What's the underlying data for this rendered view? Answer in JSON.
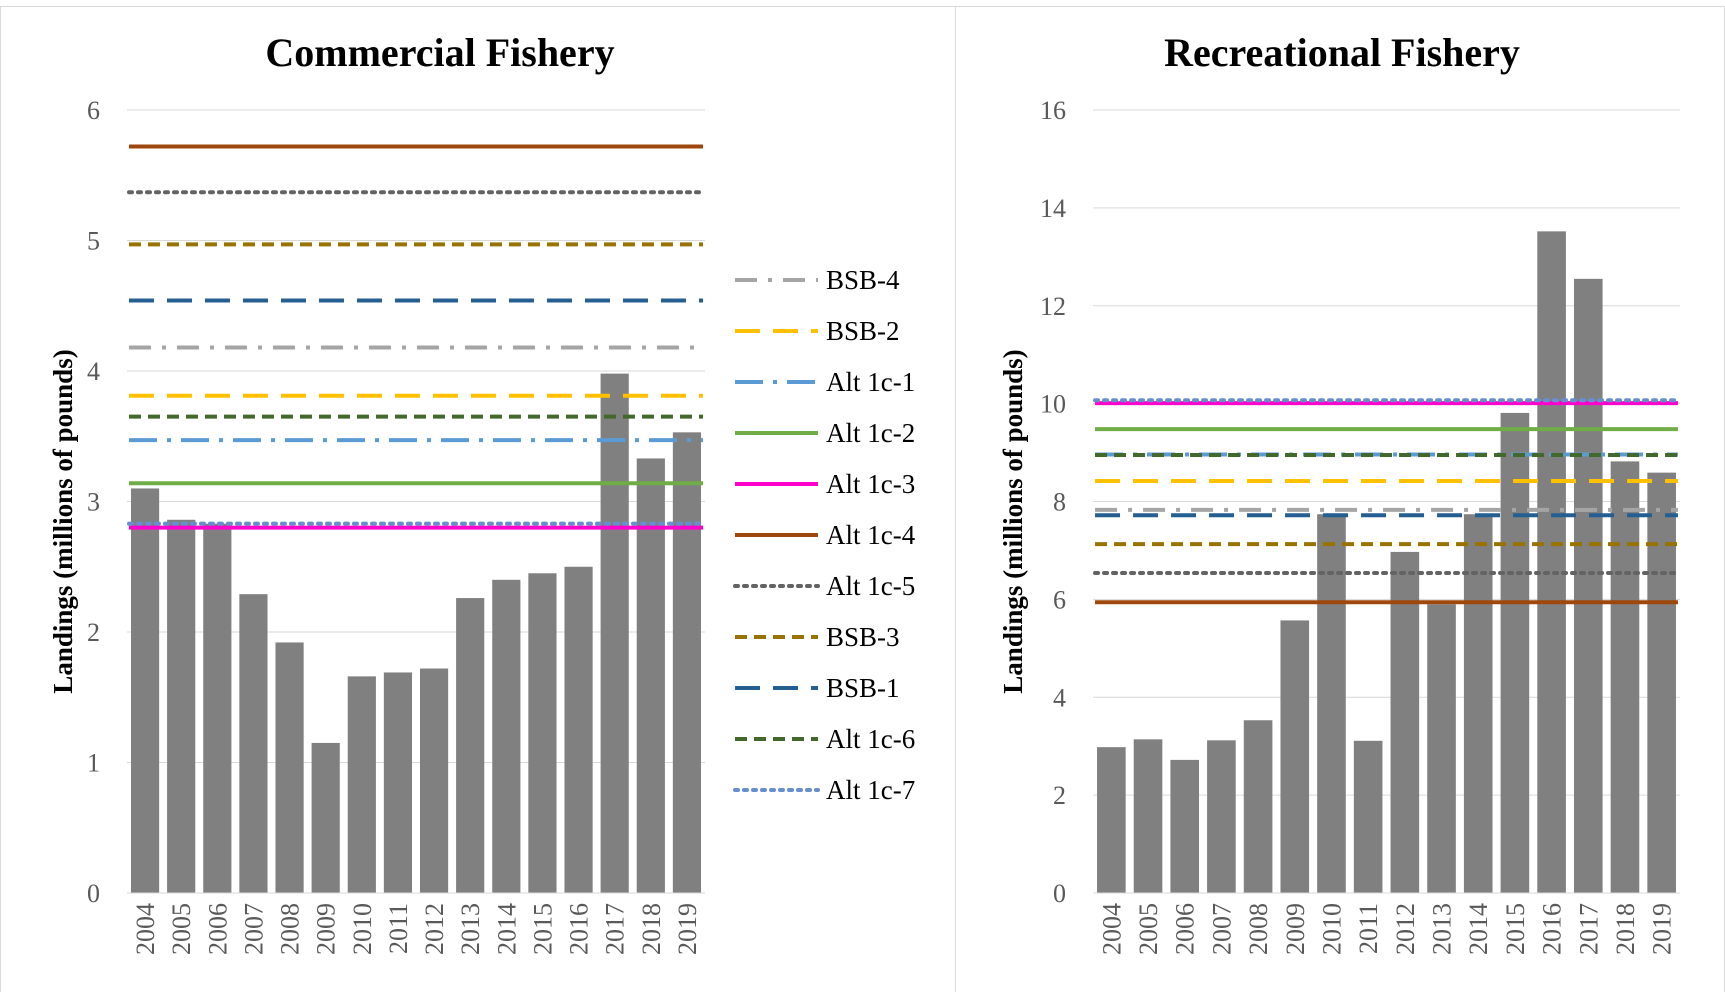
{
  "chart_data": [
    {
      "type": "bar",
      "title": "Commercial Fishery",
      "ylabel": "Landings (millions of pounds)",
      "xlabel": "",
      "ylim": [
        0,
        6
      ],
      "yticks": [
        0,
        1,
        2,
        3,
        4,
        5,
        6
      ],
      "grid": true,
      "categories": [
        "2004",
        "2005",
        "2006",
        "2007",
        "2008",
        "2009",
        "2010",
        "2011",
        "2012",
        "2013",
        "2014",
        "2015",
        "2016",
        "2017",
        "2018",
        "2019"
      ],
      "values": [
        3.1,
        2.86,
        2.83,
        2.29,
        1.92,
        1.15,
        1.66,
        1.69,
        1.72,
        2.26,
        2.4,
        2.45,
        2.5,
        3.98,
        3.33,
        3.53
      ],
      "bar_color": "#808080",
      "reference_lines": [
        {
          "name": "BSB-4",
          "value": 4.18
        },
        {
          "name": "BSB-2",
          "value": 3.81
        },
        {
          "name": "Alt 1c-1",
          "value": 3.47
        },
        {
          "name": "Alt 1c-2",
          "value": 3.14
        },
        {
          "name": "Alt 1c-3",
          "value": 2.8
        },
        {
          "name": "Alt 1c-4",
          "value": 5.72
        },
        {
          "name": "Alt 1c-5",
          "value": 5.37
        },
        {
          "name": "BSB-3",
          "value": 4.97
        },
        {
          "name": "BSB-1",
          "value": 4.54
        },
        {
          "name": "Alt 1c-6",
          "value": 3.65
        },
        {
          "name": "Alt 1c-7",
          "value": 2.83
        }
      ]
    },
    {
      "type": "bar",
      "title": "Recreational Fishery",
      "ylabel": "Landings (millions of pounds)",
      "xlabel": "",
      "ylim": [
        0,
        16
      ],
      "yticks": [
        0,
        2,
        4,
        6,
        8,
        10,
        12,
        14,
        16
      ],
      "grid": true,
      "categories": [
        "2004",
        "2005",
        "2006",
        "2007",
        "2008",
        "2009",
        "2010",
        "2011",
        "2012",
        "2013",
        "2014",
        "2015",
        "2016",
        "2017",
        "2018",
        "2019"
      ],
      "values": [
        2.98,
        3.14,
        2.72,
        3.12,
        3.53,
        5.57,
        7.74,
        3.11,
        6.97,
        5.9,
        7.74,
        9.81,
        13.52,
        12.55,
        8.82,
        8.59
      ],
      "bar_color": "#808080",
      "reference_lines": [
        {
          "name": "BSB-4",
          "value": 7.83
        },
        {
          "name": "BSB-2",
          "value": 8.42
        },
        {
          "name": "Alt 1c-1",
          "value": 8.96
        },
        {
          "name": "Alt 1c-2",
          "value": 9.48
        },
        {
          "name": "Alt 1c-3",
          "value": 10.01
        },
        {
          "name": "Alt 1c-4",
          "value": 5.94
        },
        {
          "name": "Alt 1c-5",
          "value": 6.54
        },
        {
          "name": "BSB-3",
          "value": 7.13
        },
        {
          "name": "BSB-1",
          "value": 7.72
        },
        {
          "name": "Alt 1c-6",
          "value": 8.95
        },
        {
          "name": "Alt 1c-7",
          "value": 10.07
        }
      ]
    }
  ],
  "legend": {
    "placement": "between-charts",
    "entries": [
      {
        "label": "BSB-4",
        "color": "#a5a5a5",
        "dash": "dash-dot"
      },
      {
        "label": "BSB-2",
        "color": "#ffc000",
        "dash": "long-dash"
      },
      {
        "label": "Alt 1c-1",
        "color": "#5b9bd5",
        "dash": "long-dash-dot"
      },
      {
        "label": "Alt 1c-2",
        "color": "#70ad47",
        "dash": "solid"
      },
      {
        "label": "Alt 1c-3",
        "color": "#ff00cc",
        "dash": "solid"
      },
      {
        "label": "Alt 1c-4",
        "color": "#9e480e",
        "dash": "solid"
      },
      {
        "label": "Alt 1c-5",
        "color": "#636363",
        "dash": "dotted"
      },
      {
        "label": "BSB-3",
        "color": "#997300",
        "dash": "dashed"
      },
      {
        "label": "BSB-1",
        "color": "#255e91",
        "dash": "long-dash"
      },
      {
        "label": "Alt 1c-6",
        "color": "#43682b",
        "dash": "dashed"
      },
      {
        "label": "Alt 1c-7",
        "color": "#698ed0",
        "dash": "dotted"
      }
    ]
  }
}
